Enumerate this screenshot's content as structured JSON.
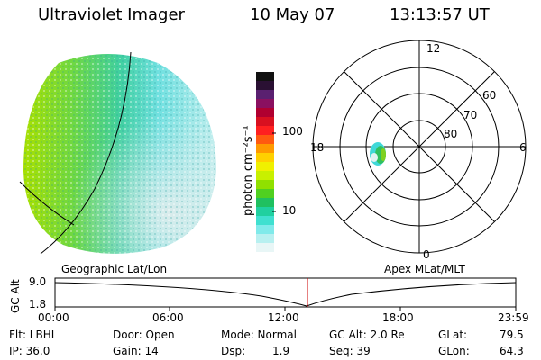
{
  "header": {
    "instrument": "Ultraviolet Imager",
    "date": "10 May 07",
    "time": "13:13:57 UT"
  },
  "colorbar": {
    "unit_label": "photon cm⁻²s⁻¹",
    "ticks": [
      "100",
      "10"
    ],
    "colors": [
      "#111111",
      "#2a1033",
      "#5a2070",
      "#8a1060",
      "#b00030",
      "#d81020",
      "#ff2020",
      "#ff5a10",
      "#ff9a00",
      "#ffd000",
      "#f0f000",
      "#c8f000",
      "#90e000",
      "#50d020",
      "#20c060",
      "#20d0a0",
      "#40e0d0",
      "#80eaea",
      "#b8f0f0",
      "#e8f6f6"
    ]
  },
  "polar_plot": {
    "mlt_labels": {
      "top": "12",
      "left": "18",
      "right": "6",
      "bottom": "0"
    },
    "lat_labels": [
      "60",
      "70",
      "80"
    ]
  },
  "orbit": {
    "left_label": "Geographic Lat/Lon",
    "right_label": "Apex MLat/MLT",
    "y_axis_label": "GC Alt",
    "y_ticks": [
      "9.0",
      "1.8"
    ],
    "time_ticks": [
      "00:00",
      "06:00",
      "12:00",
      "18:00",
      "23:59"
    ],
    "current_time_marker": "13:13:57",
    "marker_color": "#cc0000"
  },
  "status": {
    "filter": "Flt: LBHL",
    "door": "Door: Open",
    "mode": "Mode: Normal",
    "gc_alt": "GC Alt: 2.0 Re",
    "glat_label": "GLat:",
    "glat_value": "79.5",
    "ip": "IP: 36.0",
    "gain": "Gain: 14",
    "dsp_label": "Dsp:",
    "dsp_value": "1.9",
    "seq": "Seq: 39",
    "glon_label": "GLon:",
    "glon_value": "64.3"
  }
}
